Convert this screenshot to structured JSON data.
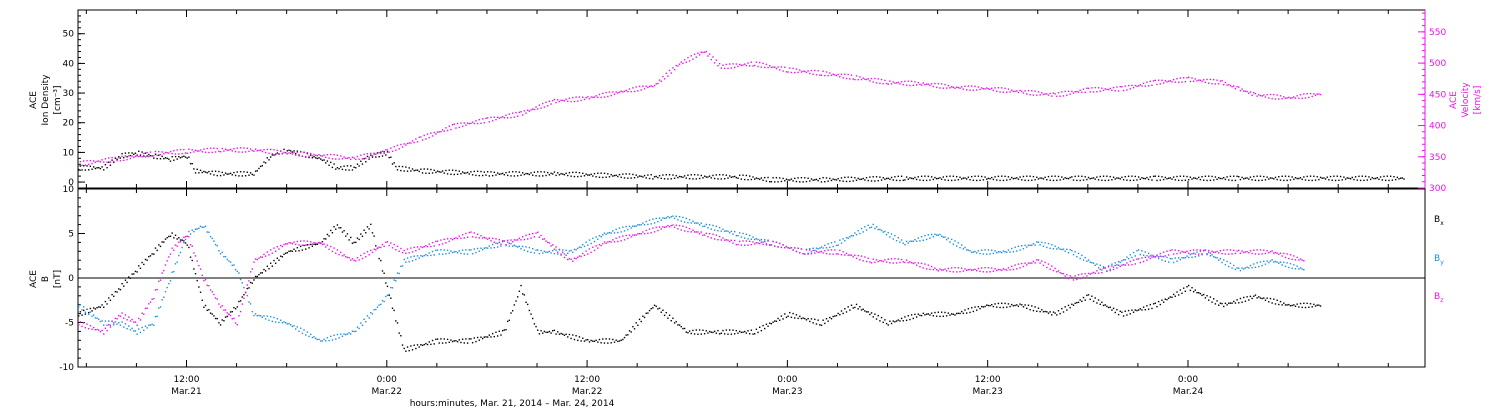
{
  "x_title": "hours:minutes, Mar. 21, 2014 – Mar. 24, 2014",
  "time_ticks": [
    {
      "t": 12,
      "time": "12:00",
      "date": "Mar.21"
    },
    {
      "t": 24,
      "time": "0:00",
      "date": "Mar.22"
    },
    {
      "t": 36,
      "time": "12:00",
      "date": "Mar.22"
    },
    {
      "t": 48,
      "time": "0:00",
      "date": "Mar.23"
    },
    {
      "t": 60,
      "time": "12:00",
      "date": "Mar.23"
    },
    {
      "t": 72,
      "time": "0:00",
      "date": "Mar.24"
    }
  ],
  "colors": {
    "black": "#000000",
    "blue": "#1a8fe3",
    "magenta": "#ee11ee"
  },
  "chart_data": [
    {
      "type": "scatter",
      "panel": "top",
      "xlabel": "hours:minutes, Mar. 21, 2014 – Mar. 24, 2014",
      "xlim_hours": [
        5.5,
        86.2
      ],
      "left_axis": {
        "lines": [
          "ACE",
          "Ion Density",
          "[cm⁻³]"
        ],
        "ylim": [
          -2,
          58
        ],
        "ticks": [
          0,
          10,
          20,
          30,
          40,
          50
        ]
      },
      "right_axis": {
        "lines": [
          "ACE",
          "Velocity",
          "[km/s]"
        ],
        "ylim": [
          300,
          585
        ],
        "ticks": [
          300,
          350,
          400,
          450,
          500,
          550
        ]
      },
      "series": [
        {
          "key": "density",
          "axis": "left",
          "color": "black",
          "points": [
            [
              5.5,
              5
            ],
            [
              7,
              5
            ],
            [
              8,
              9
            ],
            [
              9,
              10
            ],
            [
              10,
              9
            ],
            [
              11,
              8
            ],
            [
              12,
              9
            ],
            [
              12.5,
              4
            ],
            [
              14,
              3
            ],
            [
              16,
              3
            ],
            [
              17,
              9
            ],
            [
              18,
              11
            ],
            [
              20,
              8
            ],
            [
              21,
              5
            ],
            [
              22,
              5
            ],
            [
              23,
              9
            ],
            [
              24,
              10
            ],
            [
              24.5,
              5
            ],
            [
              26,
              4
            ],
            [
              30,
              3
            ],
            [
              34,
              3
            ],
            [
              40,
              2
            ],
            [
              45,
              2
            ],
            [
              47,
              1
            ],
            [
              50,
              1
            ],
            [
              55,
              1.5
            ],
            [
              60,
              1.5
            ],
            [
              65,
              1.5
            ],
            [
              70,
              1.5
            ],
            [
              75,
              1.5
            ],
            [
              80,
              1.5
            ],
            [
              85,
              1.5
            ]
          ]
        },
        {
          "key": "velocity",
          "axis": "right",
          "color": "magenta",
          "points": [
            [
              5.5,
              340
            ],
            [
              8,
              348
            ],
            [
              10,
              356
            ],
            [
              12,
              360
            ],
            [
              14,
              362
            ],
            [
              16,
              362
            ],
            [
              18,
              357
            ],
            [
              20,
              353
            ],
            [
              22,
              348
            ],
            [
              24,
              360
            ],
            [
              26,
              380
            ],
            [
              28,
              400
            ],
            [
              30,
              410
            ],
            [
              32,
              420
            ],
            [
              34,
              440
            ],
            [
              36,
              445
            ],
            [
              38,
              455
            ],
            [
              40,
              465
            ],
            [
              41.5,
              500
            ],
            [
              43,
              520
            ],
            [
              44,
              495
            ],
            [
              46,
              500
            ],
            [
              48,
              490
            ],
            [
              50,
              485
            ],
            [
              52,
              478
            ],
            [
              54,
              470
            ],
            [
              56,
              468
            ],
            [
              58,
              462
            ],
            [
              60,
              460
            ],
            [
              62,
              455
            ],
            [
              64,
              450
            ],
            [
              66,
              458
            ],
            [
              68,
              460
            ],
            [
              70,
              470
            ],
            [
              72,
              475
            ],
            [
              74,
              470
            ],
            [
              75,
              460
            ],
            [
              76,
              450
            ],
            [
              78,
              445
            ],
            [
              80,
              452
            ]
          ]
        }
      ]
    },
    {
      "type": "scatter",
      "panel": "bottom",
      "xlabel": "hours:minutes, Mar. 21, 2014 – Mar. 24, 2014",
      "xlim_hours": [
        5.5,
        86.2
      ],
      "left_axis": {
        "lines": [
          "ACE",
          "B",
          "[nT]"
        ],
        "ylim": [
          -10,
          10
        ],
        "ticks": [
          -10,
          -5,
          0,
          5,
          10
        ]
      },
      "zero_line": 0,
      "legend": {
        "placement": "right",
        "items": [
          {
            "base": "B",
            "sub": "x",
            "color": "black"
          },
          {
            "base": "B",
            "sub": "y",
            "color": "blue"
          },
          {
            "base": "B",
            "sub": "z",
            "color": "magenta"
          }
        ]
      },
      "series": [
        {
          "key": "Bx",
          "color": "black",
          "points": [
            [
              5.5,
              -4
            ],
            [
              7,
              -3
            ],
            [
              8,
              -1
            ],
            [
              9,
              1
            ],
            [
              10,
              3
            ],
            [
              11,
              5
            ],
            [
              12,
              4
            ],
            [
              13,
              -3
            ],
            [
              14,
              -5
            ],
            [
              15,
              -3
            ],
            [
              16,
              0
            ],
            [
              18,
              3
            ],
            [
              20,
              4
            ],
            [
              21,
              6
            ],
            [
              22,
              4
            ],
            [
              23,
              6
            ],
            [
              24,
              -1
            ],
            [
              25,
              -8
            ],
            [
              27,
              -7
            ],
            [
              29,
              -7
            ],
            [
              31,
              -6
            ],
            [
              32,
              -1
            ],
            [
              33,
              -6
            ],
            [
              34,
              -6
            ],
            [
              36,
              -7
            ],
            [
              38,
              -7
            ],
            [
              40,
              -3
            ],
            [
              42,
              -6
            ],
            [
              44,
              -6
            ],
            [
              46,
              -6
            ],
            [
              48,
              -4
            ],
            [
              50,
              -5
            ],
            [
              52,
              -3
            ],
            [
              54,
              -5
            ],
            [
              56,
              -4
            ],
            [
              58,
              -4
            ],
            [
              60,
              -3
            ],
            [
              62,
              -3
            ],
            [
              64,
              -4
            ],
            [
              66,
              -2
            ],
            [
              68,
              -4
            ],
            [
              70,
              -3
            ],
            [
              72,
              -1
            ],
            [
              74,
              -3
            ],
            [
              76,
              -2
            ],
            [
              78,
              -3
            ],
            [
              80,
              -3
            ]
          ]
        },
        {
          "key": "By",
          "color": "blue",
          "points": [
            [
              5.5,
              -3
            ],
            [
              7,
              -5
            ],
            [
              8,
              -5
            ],
            [
              9,
              -6
            ],
            [
              10,
              -5
            ],
            [
              11,
              0
            ],
            [
              12,
              5
            ],
            [
              13,
              6
            ],
            [
              14,
              3
            ],
            [
              15,
              1
            ],
            [
              16,
              -4
            ],
            [
              18,
              -5
            ],
            [
              20,
              -7
            ],
            [
              22,
              -6
            ],
            [
              24,
              -2
            ],
            [
              25,
              2
            ],
            [
              27,
              3
            ],
            [
              29,
              3
            ],
            [
              31,
              4
            ],
            [
              33,
              3
            ],
            [
              35,
              3
            ],
            [
              37,
              5
            ],
            [
              39,
              6
            ],
            [
              41,
              7
            ],
            [
              43,
              6
            ],
            [
              45,
              5
            ],
            [
              47,
              4
            ],
            [
              49,
              3
            ],
            [
              51,
              4
            ],
            [
              53,
              6
            ],
            [
              55,
              4
            ],
            [
              57,
              5
            ],
            [
              59,
              3
            ],
            [
              61,
              3
            ],
            [
              63,
              4
            ],
            [
              65,
              3
            ],
            [
              67,
              1
            ],
            [
              69,
              3
            ],
            [
              71,
              2
            ],
            [
              73,
              3
            ],
            [
              75,
              1
            ],
            [
              77,
              2
            ],
            [
              79,
              1
            ]
          ]
        },
        {
          "key": "Bz",
          "color": "magenta",
          "points": [
            [
              5.5,
              -5
            ],
            [
              7,
              -6
            ],
            [
              8,
              -4
            ],
            [
              9,
              -5
            ],
            [
              10,
              -2
            ],
            [
              11,
              3
            ],
            [
              12,
              5
            ],
            [
              13,
              0
            ],
            [
              14,
              -3
            ],
            [
              15,
              -5
            ],
            [
              16,
              2
            ],
            [
              18,
              4
            ],
            [
              20,
              4
            ],
            [
              22,
              2
            ],
            [
              24,
              4
            ],
            [
              25,
              3
            ],
            [
              27,
              4
            ],
            [
              29,
              5
            ],
            [
              31,
              4
            ],
            [
              33,
              5
            ],
            [
              35,
              2
            ],
            [
              37,
              4
            ],
            [
              39,
              5
            ],
            [
              41,
              6
            ],
            [
              43,
              5
            ],
            [
              45,
              4
            ],
            [
              47,
              4
            ],
            [
              49,
              3
            ],
            [
              51,
              3
            ],
            [
              53,
              2
            ],
            [
              55,
              2
            ],
            [
              57,
              1
            ],
            [
              59,
              1
            ],
            [
              61,
              1
            ],
            [
              63,
              2
            ],
            [
              65,
              0
            ],
            [
              67,
              1
            ],
            [
              69,
              2
            ],
            [
              71,
              3
            ],
            [
              73,
              3
            ],
            [
              75,
              3
            ],
            [
              77,
              3
            ],
            [
              79,
              2
            ]
          ]
        }
      ]
    }
  ]
}
